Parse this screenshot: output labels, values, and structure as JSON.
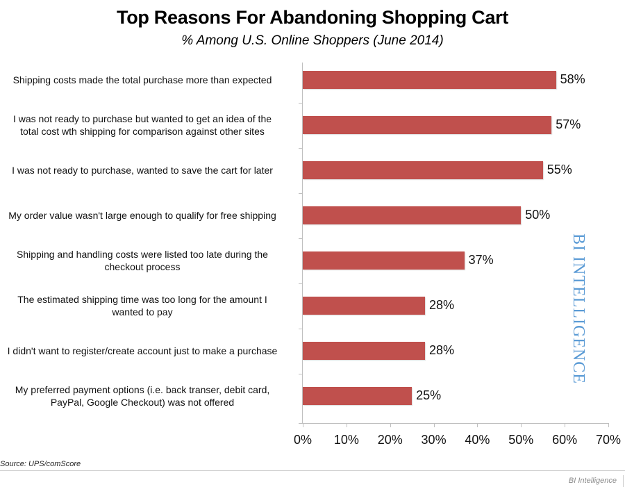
{
  "header": {
    "title": "Top Reasons For Abandoning Shopping Cart",
    "subtitle": "% Among U.S. Online Shoppers (June 2014)"
  },
  "footer": {
    "source": "Source: UPS/comScore",
    "brand": "BI Intelligence"
  },
  "watermark": "BI INTELLIGENCE",
  "colors": {
    "bar": "#c0504d",
    "watermark": "#5b9bd5",
    "axis": "#bfbfbf"
  },
  "chart_data": {
    "type": "bar",
    "orientation": "horizontal",
    "title": "Top Reasons For Abandoning Shopping Cart",
    "subtitle": "% Among U.S. Online Shoppers (June 2014)",
    "categories": [
      "Shipping costs made the total purchase more than expected",
      "I was not ready to purchase but wanted to get an idea of the total cost wth shipping for comparison against other sites",
      "I was not ready to purchase, wanted to save the cart for later",
      "My order value wasn't large enough to qualify for free shipping",
      "Shipping and handling costs were listed too late during the checkout process",
      "The estimated shipping time was too long for the amount I wanted to pay",
      "I didn't want to register/create account just to make a purchase",
      "My preferred payment options (i.e. back transer, debit card, PayPal, Google Checkout) was not offered"
    ],
    "values": [
      58,
      57,
      55,
      50,
      37,
      28,
      28,
      25
    ],
    "value_labels": [
      "58%",
      "57%",
      "55%",
      "50%",
      "37%",
      "28%",
      "28%",
      "25%"
    ],
    "xlabel": "",
    "ylabel": "",
    "xlim": [
      0,
      70
    ],
    "xticks": [
      "0%",
      "10%",
      "20%",
      "30%",
      "40%",
      "50%",
      "60%",
      "70%"
    ],
    "grid": false,
    "legend": null,
    "source": "Source: UPS/comScore"
  },
  "rows": [
    {
      "line1": "Shipping costs made the total purchase more than expected",
      "line2": "",
      "label": "58%"
    },
    {
      "line1": "I was not ready to purchase but wanted to get an idea of the",
      "line2": "total cost wth shipping for comparison against other sites",
      "label": "57%"
    },
    {
      "line1": "I was not ready to purchase, wanted to save the cart for later",
      "line2": "",
      "label": "55%"
    },
    {
      "line1": "My order value wasn't large enough to qualify for free shipping",
      "line2": "",
      "label": "50%"
    },
    {
      "line1": "Shipping and handling costs were listed too late during the",
      "line2": "checkout process",
      "label": "37%"
    },
    {
      "line1": "The estimated shipping time was too long for the amount I",
      "line2": "wanted to pay",
      "label": "28%"
    },
    {
      "line1": "I didn't want to register/create account just to make a purchase",
      "line2": "",
      "label": "28%"
    },
    {
      "line1": "My preferred payment options (i.e. back transer, debit card,",
      "line2": "PayPal, Google Checkout) was not offered",
      "label": "25%"
    }
  ],
  "xticks": [
    "0%",
    "10%",
    "20%",
    "30%",
    "40%",
    "50%",
    "60%",
    "70%"
  ]
}
